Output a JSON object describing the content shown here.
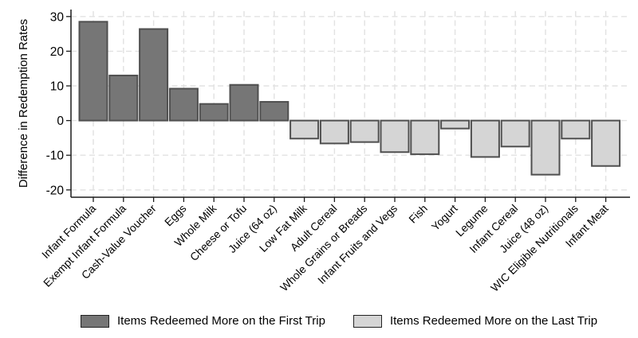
{
  "chart_data": {
    "type": "bar",
    "title": "",
    "xlabel": "",
    "ylabel": "Difference in Redemption Rates",
    "ylim": [
      -20,
      30
    ],
    "yticks": [
      30,
      20,
      10,
      0,
      -10,
      -20
    ],
    "grid": "dashed horizontal and vertical gridlines",
    "legend_position": "bottom",
    "categories": [
      "Infant Formula",
      "Exempt Infant Formula",
      "Cash-Value Voucher",
      "Eggs",
      "Whole Milk",
      "Cheese or Tofu",
      "Juice (64 oz)",
      "Low Fat Milk",
      "Adult Cereal",
      "Whole Grains or Breads",
      "Infant Fruits and Vegs",
      "Fish",
      "Yogurt",
      "Legume",
      "Infant Cereal",
      "Juice (48 oz)",
      "WIC Eligible Nutritionals",
      "Infant Meat"
    ],
    "values": [
      28.5,
      13.0,
      26.4,
      9.2,
      4.8,
      10.3,
      5.4,
      -5.2,
      -6.6,
      -6.2,
      -9.1,
      -9.7,
      -2.3,
      -10.5,
      -7.5,
      -15.6,
      -5.2,
      -13.1
    ],
    "colors": {
      "positive_fill": "#767676",
      "negative_fill": "#d5d5d5",
      "bar_stroke": "#4f4f4f"
    },
    "legend": [
      {
        "label": "Items Redeemed More on the First Trip",
        "color": "#767676"
      },
      {
        "label": "Items Redeemed More on the Last Trip",
        "color": "#d5d5d5"
      }
    ]
  }
}
